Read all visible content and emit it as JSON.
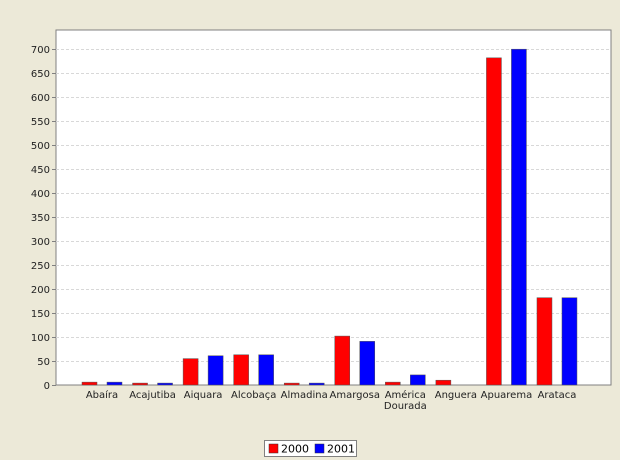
{
  "chart_data": {
    "type": "bar",
    "categories": [
      "Abaíra",
      "Acajutiba",
      "Aiquara",
      "Alcobaça",
      "Almadina",
      "Amargosa",
      "América Dourada",
      "Anguera",
      "Apuarema",
      "Arataca"
    ],
    "series": [
      {
        "name": "2000",
        "color": "#ff0000",
        "values": [
          6,
          4,
          55,
          63,
          4,
          102,
          6,
          10,
          682,
          182
        ]
      },
      {
        "name": "2001",
        "color": "#0000ff",
        "values": [
          6,
          4,
          61,
          63,
          4,
          91,
          21,
          0,
          700,
          182
        ]
      }
    ],
    "title": "",
    "xlabel": "",
    "ylabel": "",
    "ylim": [
      0,
      740
    ],
    "yticks": [
      0,
      50,
      100,
      150,
      200,
      250,
      300,
      350,
      400,
      450,
      500,
      550,
      600,
      650,
      700
    ],
    "grid": true,
    "legend_position": "bottom-center"
  }
}
